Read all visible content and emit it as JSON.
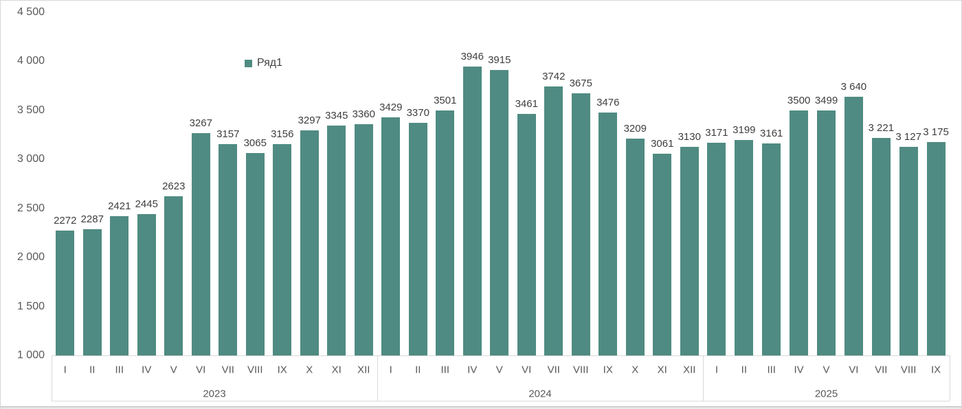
{
  "chart_data": {
    "type": "bar",
    "title": "",
    "legend_label": "Ряд1",
    "legend_position": "inside-top",
    "grid": false,
    "bar_color": "#4f8b82",
    "axis_line_color": "#d9d9d9",
    "ylim": [
      1000,
      4500
    ],
    "y_ticks": [
      {
        "value": 1000,
        "label": "1 000"
      },
      {
        "value": 1500,
        "label": "1 500"
      },
      {
        "value": 2000,
        "label": "2 000"
      },
      {
        "value": 2500,
        "label": "2 500"
      },
      {
        "value": 3000,
        "label": "3 000"
      },
      {
        "value": 3500,
        "label": "3 500"
      },
      {
        "value": 4000,
        "label": "4 000"
      },
      {
        "value": 4500,
        "label": "4 500"
      }
    ],
    "groups": [
      {
        "year": "2023",
        "categories": [
          "I",
          "II",
          "III",
          "IV",
          "V",
          "VI",
          "VII",
          "VIII",
          "IX",
          "X",
          "XI",
          "XII"
        ],
        "values": [
          2272,
          2287,
          2421,
          2445,
          2623,
          3267,
          3157,
          3065,
          3156,
          3297,
          3345,
          3360
        ],
        "value_labels": [
          "2272",
          "2287",
          "2421",
          "2445",
          "2623",
          "3267",
          "3157",
          "3065",
          "3156",
          "3297",
          "3345",
          "3360"
        ]
      },
      {
        "year": "2024",
        "categories": [
          "I",
          "II",
          "III",
          "IV",
          "V",
          "VI",
          "VII",
          "VIII",
          "IX",
          "X",
          "XI",
          "XII"
        ],
        "values": [
          3429,
          3370,
          3501,
          3946,
          3915,
          3461,
          3742,
          3675,
          3476,
          3209,
          3061,
          3130
        ],
        "value_labels": [
          "3429",
          "3370",
          "3501",
          "3946",
          "3915",
          "3461",
          "3742",
          "3675",
          "3476",
          "3209",
          "3061",
          "3130"
        ]
      },
      {
        "year": "2025",
        "categories": [
          "I",
          "II",
          "III",
          "IV",
          "V",
          "VI",
          "VII",
          "VIII",
          "IX"
        ],
        "values": [
          3171,
          3199,
          3161,
          3500,
          3499,
          3640,
          3221,
          3127,
          3175
        ],
        "value_labels": [
          "3171",
          "3199",
          "3161",
          "3500",
          "3499",
          "3 640",
          "3 221",
          "3 127",
          "3 175"
        ]
      }
    ]
  }
}
